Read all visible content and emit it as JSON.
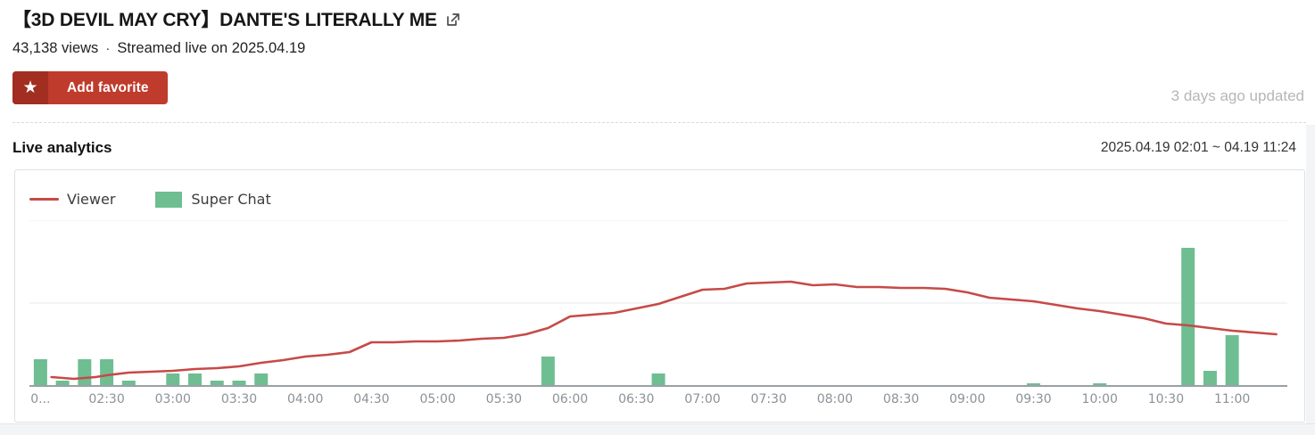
{
  "header": {
    "title": "【3D DEVIL MAY CRY】DANTE'S LITERALLY ME",
    "external_link_icon": "box-arrow-up-right",
    "views": "43,138 views",
    "separator": "·",
    "streamed": "Streamed live on 2025.04.19",
    "favorite_button": {
      "label": "Add favorite",
      "icon": "star",
      "bg": "#bf3b2c",
      "icon_bg": "#a22e22"
    },
    "updated": "3 days ago updated"
  },
  "analytics": {
    "section_title": "Live analytics",
    "date_range": "2025.04.19 02:01 ~ 04.19 11:24"
  },
  "chart_data": {
    "type": "line+bar",
    "legend": [
      {
        "label": "Viewer",
        "type": "line",
        "color": "#c64a47"
      },
      {
        "label": "Super Chat",
        "type": "bar",
        "color": "#6ebe92"
      }
    ],
    "x_axis": {
      "start": "02:00",
      "step_minutes": 10,
      "slots": 57,
      "ticks": [
        {
          "slot": 0,
          "label": "0..."
        },
        {
          "slot": 3,
          "label": "02:30"
        },
        {
          "slot": 6,
          "label": "03:00"
        },
        {
          "slot": 9,
          "label": "03:30"
        },
        {
          "slot": 12,
          "label": "04:00"
        },
        {
          "slot": 15,
          "label": "04:30"
        },
        {
          "slot": 18,
          "label": "05:00"
        },
        {
          "slot": 21,
          "label": "05:30"
        },
        {
          "slot": 24,
          "label": "06:00"
        },
        {
          "slot": 27,
          "label": "06:30"
        },
        {
          "slot": 30,
          "label": "07:00"
        },
        {
          "slot": 33,
          "label": "07:30"
        },
        {
          "slot": 36,
          "label": "08:00"
        },
        {
          "slot": 39,
          "label": "08:30"
        },
        {
          "slot": 42,
          "label": "09:00"
        },
        {
          "slot": 45,
          "label": "09:30"
        },
        {
          "slot": 48,
          "label": "10:00"
        },
        {
          "slot": 51,
          "label": "10:30"
        },
        {
          "slot": 54,
          "label": "11:00"
        }
      ]
    },
    "y_axis": {
      "labels_visible": false,
      "range": [
        0,
        186
      ],
      "gridline_values": [
        93,
        186
      ],
      "grid_color": "#e9ebed",
      "axis_color": "#9aa0a5",
      "tick_text_color": "#8b9299"
    },
    "series": [
      {
        "name": "Viewer",
        "type": "line",
        "color": "#c64a47",
        "points": [
          [
            5,
            10
          ],
          [
            15,
            8
          ],
          [
            25,
            10
          ],
          [
            30,
            12
          ],
          [
            40,
            15
          ],
          [
            50,
            16
          ],
          [
            60,
            17
          ],
          [
            70,
            19
          ],
          [
            80,
            20
          ],
          [
            90,
            22
          ],
          [
            100,
            26
          ],
          [
            110,
            29
          ],
          [
            120,
            33
          ],
          [
            130,
            35
          ],
          [
            140,
            38
          ],
          [
            150,
            49
          ],
          [
            160,
            49
          ],
          [
            170,
            50
          ],
          [
            180,
            50
          ],
          [
            190,
            51
          ],
          [
            200,
            53
          ],
          [
            210,
            54
          ],
          [
            220,
            58
          ],
          [
            230,
            65
          ],
          [
            240,
            78
          ],
          [
            250,
            80
          ],
          [
            260,
            82
          ],
          [
            270,
            87
          ],
          [
            280,
            92
          ],
          [
            290,
            100
          ],
          [
            300,
            108
          ],
          [
            310,
            109
          ],
          [
            320,
            115
          ],
          [
            330,
            116
          ],
          [
            340,
            117
          ],
          [
            350,
            113
          ],
          [
            360,
            114
          ],
          [
            370,
            111
          ],
          [
            380,
            111
          ],
          [
            390,
            110
          ],
          [
            400,
            110
          ],
          [
            410,
            109
          ],
          [
            420,
            105
          ],
          [
            430,
            99
          ],
          [
            440,
            97
          ],
          [
            450,
            95
          ],
          [
            460,
            91
          ],
          [
            470,
            87
          ],
          [
            480,
            84
          ],
          [
            490,
            80
          ],
          [
            500,
            76
          ],
          [
            510,
            70
          ],
          [
            520,
            68
          ],
          [
            530,
            65
          ],
          [
            540,
            62
          ],
          [
            550,
            60
          ],
          [
            560,
            58
          ]
        ]
      },
      {
        "name": "Super Chat",
        "type": "bar",
        "color": "#6ebe92",
        "points": [
          [
            0,
            30
          ],
          [
            10,
            6
          ],
          [
            20,
            30
          ],
          [
            30,
            30
          ],
          [
            40,
            6
          ],
          [
            60,
            14
          ],
          [
            70,
            14
          ],
          [
            80,
            6
          ],
          [
            90,
            6
          ],
          [
            100,
            14
          ],
          [
            230,
            33
          ],
          [
            280,
            14
          ],
          [
            450,
            3
          ],
          [
            480,
            3
          ],
          [
            520,
            155
          ],
          [
            530,
            17
          ],
          [
            540,
            57
          ]
        ]
      }
    ]
  }
}
